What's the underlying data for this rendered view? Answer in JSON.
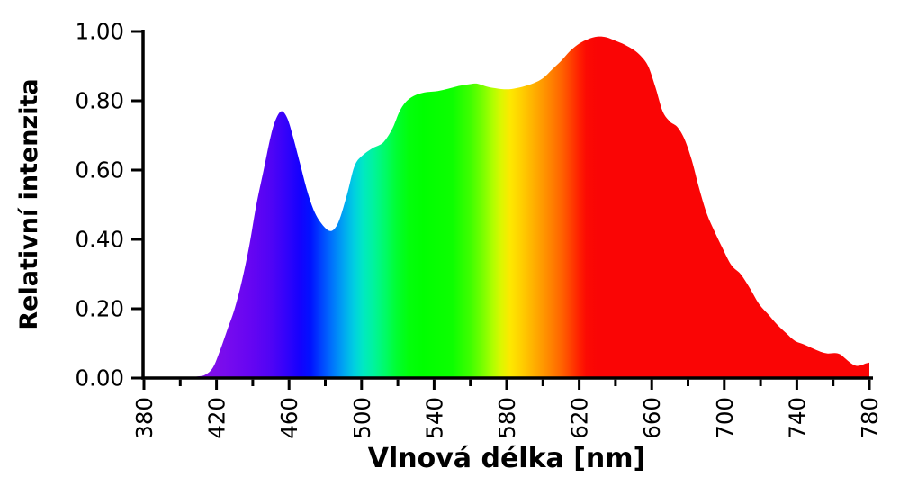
{
  "figure": {
    "background": "#ffffff",
    "axis_color": "#000000",
    "text_color": "#000000"
  },
  "chart_data": {
    "type": "area",
    "title": "",
    "xlabel": "Vlnová délka [nm]",
    "ylabel": "Relativní intenzita",
    "xlim": [
      380,
      780
    ],
    "ylim": [
      0,
      1.0
    ],
    "grid": false,
    "legend": false,
    "x_major_ticks": [
      380,
      420,
      460,
      500,
      540,
      580,
      620,
      660,
      700,
      740,
      780
    ],
    "x_tick_labels": [
      "380",
      "420",
      "460",
      "500",
      "540",
      "580",
      "620",
      "660",
      "700",
      "740",
      "780"
    ],
    "x_minor_ticks": [
      400,
      440,
      480,
      520,
      560,
      600,
      640,
      680,
      720,
      760
    ],
    "y_ticks": [
      0.0,
      0.2,
      0.4,
      0.6,
      0.8,
      1.0
    ],
    "y_tick_labels": [
      "0.00",
      "0.20",
      "0.40",
      "0.60",
      "0.80",
      "1.00"
    ],
    "series": [
      {
        "name": "relative-intensity-spectrum",
        "fill": "wavelength-gradient",
        "points": [
          [
            400,
            0.0
          ],
          [
            405,
            0.002
          ],
          [
            410,
            0.005
          ],
          [
            414,
            0.01
          ],
          [
            418,
            0.03
          ],
          [
            422,
            0.08
          ],
          [
            426,
            0.14
          ],
          [
            430,
            0.2
          ],
          [
            434,
            0.28
          ],
          [
            438,
            0.38
          ],
          [
            442,
            0.5
          ],
          [
            446,
            0.6
          ],
          [
            450,
            0.7
          ],
          [
            453,
            0.75
          ],
          [
            456,
            0.77
          ],
          [
            459,
            0.75
          ],
          [
            462,
            0.7
          ],
          [
            466,
            0.62
          ],
          [
            470,
            0.54
          ],
          [
            474,
            0.48
          ],
          [
            478,
            0.445
          ],
          [
            482,
            0.425
          ],
          [
            485,
            0.43
          ],
          [
            488,
            0.46
          ],
          [
            492,
            0.53
          ],
          [
            496,
            0.61
          ],
          [
            500,
            0.64
          ],
          [
            506,
            0.663
          ],
          [
            512,
            0.68
          ],
          [
            517,
            0.72
          ],
          [
            521,
            0.77
          ],
          [
            525,
            0.8
          ],
          [
            530,
            0.817
          ],
          [
            536,
            0.825
          ],
          [
            542,
            0.828
          ],
          [
            548,
            0.835
          ],
          [
            554,
            0.843
          ],
          [
            560,
            0.848
          ],
          [
            564,
            0.849
          ],
          [
            569,
            0.841
          ],
          [
            574,
            0.836
          ],
          [
            580,
            0.833
          ],
          [
            585,
            0.836
          ],
          [
            590,
            0.842
          ],
          [
            595,
            0.851
          ],
          [
            600,
            0.865
          ],
          [
            605,
            0.89
          ],
          [
            610,
            0.915
          ],
          [
            615,
            0.944
          ],
          [
            620,
            0.965
          ],
          [
            625,
            0.978
          ],
          [
            630,
            0.985
          ],
          [
            635,
            0.983
          ],
          [
            640,
            0.973
          ],
          [
            645,
            0.962
          ],
          [
            650,
            0.947
          ],
          [
            654,
            0.929
          ],
          [
            658,
            0.9
          ],
          [
            662,
            0.84
          ],
          [
            666,
            0.77
          ],
          [
            670,
            0.74
          ],
          [
            674,
            0.725
          ],
          [
            678,
            0.69
          ],
          [
            682,
            0.63
          ],
          [
            686,
            0.55
          ],
          [
            690,
            0.48
          ],
          [
            694,
            0.43
          ],
          [
            699,
            0.375
          ],
          [
            704,
            0.325
          ],
          [
            709,
            0.3
          ],
          [
            714,
            0.26
          ],
          [
            719,
            0.215
          ],
          [
            724,
            0.185
          ],
          [
            729,
            0.155
          ],
          [
            734,
            0.13
          ],
          [
            739,
            0.107
          ],
          [
            744,
            0.097
          ],
          [
            749,
            0.085
          ],
          [
            753,
            0.076
          ],
          [
            757,
            0.071
          ],
          [
            761,
            0.072
          ],
          [
            764,
            0.068
          ],
          [
            767,
            0.055
          ],
          [
            770,
            0.042
          ],
          [
            773,
            0.035
          ],
          [
            776,
            0.038
          ],
          [
            778,
            0.042
          ],
          [
            780,
            0.045
          ]
        ]
      }
    ],
    "gradient_stops": [
      [
        400,
        "#8A10E0"
      ],
      [
        415,
        "#8210E8"
      ],
      [
        428,
        "#740AEF"
      ],
      [
        440,
        "#6405F2"
      ],
      [
        450,
        "#5004F5"
      ],
      [
        458,
        "#3502FA"
      ],
      [
        466,
        "#1401FE"
      ],
      [
        472,
        "#0013FF"
      ],
      [
        478,
        "#0045FF"
      ],
      [
        484,
        "#0075FC"
      ],
      [
        490,
        "#00A5F2"
      ],
      [
        496,
        "#00D0E0"
      ],
      [
        501,
        "#00E9C2"
      ],
      [
        507,
        "#00F49A"
      ],
      [
        513,
        "#00FB68"
      ],
      [
        519,
        "#00FE33"
      ],
      [
        526,
        "#02FF0C"
      ],
      [
        534,
        "#00FF00"
      ],
      [
        550,
        "#0CFF00"
      ],
      [
        560,
        "#3FFF00"
      ],
      [
        567,
        "#7AFF00"
      ],
      [
        572,
        "#ACFF00"
      ],
      [
        577,
        "#DCF700"
      ],
      [
        582,
        "#FDE800"
      ],
      [
        588,
        "#FFD000"
      ],
      [
        594,
        "#FFB400"
      ],
      [
        600,
        "#FF9800"
      ],
      [
        606,
        "#FF7A00"
      ],
      [
        611,
        "#FF5F00"
      ],
      [
        616,
        "#FF3C00"
      ],
      [
        620,
        "#FF2000"
      ],
      [
        624,
        "#FC0A03"
      ],
      [
        630,
        "#FA0505"
      ],
      [
        780,
        "#FA0505"
      ]
    ]
  }
}
